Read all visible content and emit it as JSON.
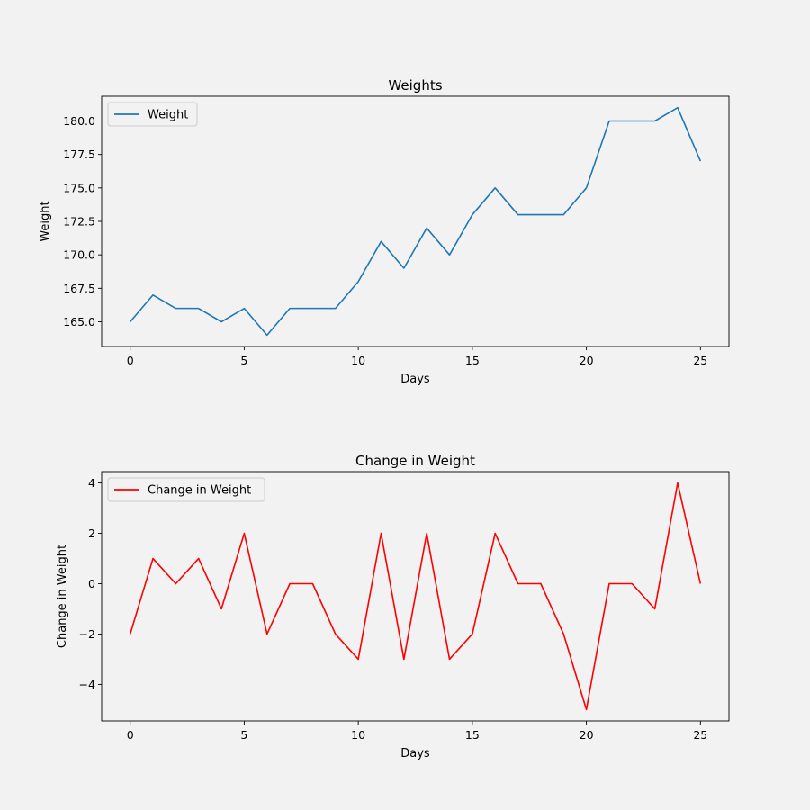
{
  "chart_data": [
    {
      "type": "line",
      "title": "Weights",
      "xlabel": "Days",
      "ylabel": "Weight",
      "x": [
        0,
        1,
        2,
        3,
        4,
        5,
        6,
        7,
        8,
        9,
        10,
        11,
        12,
        13,
        14,
        15,
        16,
        17,
        18,
        19,
        20,
        21,
        22,
        23,
        24,
        25
      ],
      "series": [
        {
          "name": "Weight",
          "color": "#1f77b4",
          "values": [
            165,
            167,
            166,
            166,
            165,
            166,
            164,
            166,
            166,
            166,
            168,
            171,
            169,
            172,
            170,
            173,
            175,
            173,
            173,
            173,
            175,
            180,
            180,
            180,
            181,
            177
          ]
        }
      ],
      "xticks": [
        0,
        5,
        10,
        15,
        20,
        25
      ],
      "xtick_labels": [
        "0",
        "5",
        "10",
        "15",
        "20",
        "25"
      ],
      "yticks": [
        165.0,
        167.5,
        170.0,
        172.5,
        175.0,
        177.5,
        180.0
      ],
      "ytick_labels": [
        "165.0",
        "167.5",
        "170.0",
        "172.5",
        "175.0",
        "177.5",
        "180.0"
      ],
      "xlim": [
        -1.25,
        26.25
      ],
      "ylim": [
        163.15,
        181.85
      ],
      "legend": "upper-left",
      "grid": false
    },
    {
      "type": "line",
      "title": "Change in Weight",
      "xlabel": "Days",
      "ylabel": "Change in Weight",
      "x": [
        0,
        1,
        2,
        3,
        4,
        5,
        6,
        7,
        8,
        9,
        10,
        11,
        12,
        13,
        14,
        15,
        16,
        17,
        18,
        19,
        20,
        21,
        22,
        23,
        24,
        25
      ],
      "series": [
        {
          "name": "Change in Weight",
          "color": "#ff0000",
          "values": [
            -2,
            1,
            0,
            1,
            -1,
            2,
            -2,
            0,
            0,
            -2,
            -3,
            2,
            -3,
            2,
            -3,
            -2,
            2,
            0,
            0,
            -2,
            -5,
            0,
            0,
            -1,
            4,
            0
          ]
        }
      ],
      "xticks": [
        0,
        5,
        10,
        15,
        20,
        25
      ],
      "xtick_labels": [
        "0",
        "5",
        "10",
        "15",
        "20",
        "25"
      ],
      "yticks": [
        -4,
        -2,
        0,
        2,
        4
      ],
      "ytick_labels": [
        "−4",
        "−2",
        "0",
        "2",
        "4"
      ],
      "xlim": [
        -1.25,
        26.25
      ],
      "ylim": [
        -5.45,
        4.45
      ],
      "legend": "upper-left",
      "grid": false
    }
  ]
}
